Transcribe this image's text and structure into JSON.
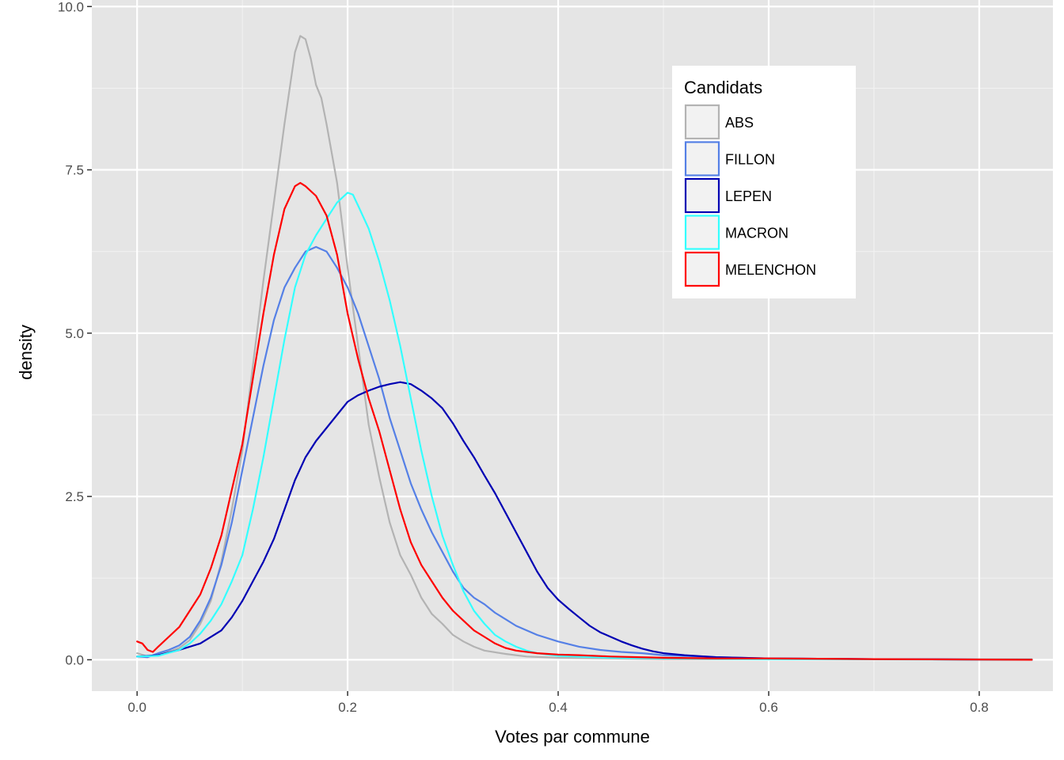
{
  "chart_data": {
    "type": "line",
    "subtype": "density",
    "xlabel": "Votes par commune",
    "ylabel": "density",
    "xlim": [
      -0.043,
      0.87
    ],
    "ylim": [
      -0.48,
      10.1
    ],
    "x_ticks": [
      0.0,
      0.2,
      0.4,
      0.6,
      0.8
    ],
    "x_tick_labels": [
      "0.0",
      "0.2",
      "0.4",
      "0.6",
      "0.8"
    ],
    "y_ticks": [
      0.0,
      2.5,
      5.0,
      7.5,
      10.0
    ],
    "y_tick_labels": [
      "0.0",
      "2.5",
      "5.0",
      "7.5",
      "10.0"
    ],
    "grid": true,
    "background": "#e5e5e5",
    "legend": {
      "title": "Candidats",
      "position": "top-right"
    },
    "series": [
      {
        "name": "ABS",
        "color": "#b3b3b3",
        "points": [
          [
            0.0,
            0.1
          ],
          [
            0.01,
            0.05
          ],
          [
            0.02,
            0.08
          ],
          [
            0.03,
            0.12
          ],
          [
            0.04,
            0.18
          ],
          [
            0.05,
            0.3
          ],
          [
            0.06,
            0.55
          ],
          [
            0.07,
            0.9
          ],
          [
            0.08,
            1.5
          ],
          [
            0.09,
            2.3
          ],
          [
            0.1,
            3.2
          ],
          [
            0.11,
            4.5
          ],
          [
            0.12,
            5.8
          ],
          [
            0.13,
            7.0
          ],
          [
            0.14,
            8.2
          ],
          [
            0.15,
            9.3
          ],
          [
            0.155,
            9.55
          ],
          [
            0.16,
            9.5
          ],
          [
            0.165,
            9.2
          ],
          [
            0.17,
            8.8
          ],
          [
            0.175,
            8.6
          ],
          [
            0.18,
            8.2
          ],
          [
            0.19,
            7.3
          ],
          [
            0.2,
            6.0
          ],
          [
            0.21,
            4.8
          ],
          [
            0.22,
            3.6
          ],
          [
            0.23,
            2.8
          ],
          [
            0.24,
            2.1
          ],
          [
            0.25,
            1.6
          ],
          [
            0.26,
            1.3
          ],
          [
            0.27,
            0.95
          ],
          [
            0.28,
            0.7
          ],
          [
            0.29,
            0.55
          ],
          [
            0.3,
            0.38
          ],
          [
            0.31,
            0.28
          ],
          [
            0.32,
            0.2
          ],
          [
            0.33,
            0.14
          ],
          [
            0.35,
            0.09
          ],
          [
            0.37,
            0.05
          ],
          [
            0.4,
            0.03
          ],
          [
            0.5,
            0.01
          ],
          [
            0.6,
            0.01
          ],
          [
            0.7,
            0.01
          ],
          [
            0.8,
            0.01
          ],
          [
            0.85,
            0.01
          ]
        ]
      },
      {
        "name": "FILLON",
        "color": "#5580e6",
        "points": [
          [
            0.0,
            0.05
          ],
          [
            0.01,
            0.04
          ],
          [
            0.02,
            0.1
          ],
          [
            0.03,
            0.15
          ],
          [
            0.04,
            0.22
          ],
          [
            0.05,
            0.35
          ],
          [
            0.06,
            0.6
          ],
          [
            0.07,
            0.95
          ],
          [
            0.08,
            1.45
          ],
          [
            0.09,
            2.1
          ],
          [
            0.1,
            2.9
          ],
          [
            0.11,
            3.7
          ],
          [
            0.12,
            4.5
          ],
          [
            0.13,
            5.2
          ],
          [
            0.14,
            5.7
          ],
          [
            0.15,
            6.0
          ],
          [
            0.16,
            6.25
          ],
          [
            0.17,
            6.32
          ],
          [
            0.18,
            6.25
          ],
          [
            0.19,
            6.0
          ],
          [
            0.2,
            5.7
          ],
          [
            0.21,
            5.3
          ],
          [
            0.22,
            4.8
          ],
          [
            0.23,
            4.3
          ],
          [
            0.24,
            3.7
          ],
          [
            0.25,
            3.2
          ],
          [
            0.26,
            2.7
          ],
          [
            0.27,
            2.3
          ],
          [
            0.28,
            1.95
          ],
          [
            0.29,
            1.65
          ],
          [
            0.3,
            1.35
          ],
          [
            0.31,
            1.1
          ],
          [
            0.32,
            0.95
          ],
          [
            0.33,
            0.85
          ],
          [
            0.34,
            0.72
          ],
          [
            0.35,
            0.62
          ],
          [
            0.36,
            0.52
          ],
          [
            0.37,
            0.45
          ],
          [
            0.38,
            0.38
          ],
          [
            0.4,
            0.28
          ],
          [
            0.42,
            0.2
          ],
          [
            0.44,
            0.15
          ],
          [
            0.46,
            0.12
          ],
          [
            0.48,
            0.1
          ],
          [
            0.5,
            0.07
          ],
          [
            0.55,
            0.04
          ],
          [
            0.6,
            0.02
          ],
          [
            0.7,
            0.01
          ],
          [
            0.85,
            0.0
          ]
        ]
      },
      {
        "name": "LEPEN",
        "color": "#0000b3",
        "points": [
          [
            0.0,
            0.05
          ],
          [
            0.02,
            0.07
          ],
          [
            0.04,
            0.15
          ],
          [
            0.06,
            0.25
          ],
          [
            0.08,
            0.45
          ],
          [
            0.09,
            0.65
          ],
          [
            0.1,
            0.9
          ],
          [
            0.11,
            1.2
          ],
          [
            0.12,
            1.5
          ],
          [
            0.13,
            1.85
          ],
          [
            0.14,
            2.3
          ],
          [
            0.15,
            2.75
          ],
          [
            0.16,
            3.1
          ],
          [
            0.17,
            3.35
          ],
          [
            0.18,
            3.55
          ],
          [
            0.19,
            3.75
          ],
          [
            0.2,
            3.95
          ],
          [
            0.21,
            4.05
          ],
          [
            0.22,
            4.12
          ],
          [
            0.23,
            4.18
          ],
          [
            0.24,
            4.22
          ],
          [
            0.25,
            4.25
          ],
          [
            0.26,
            4.22
          ],
          [
            0.27,
            4.12
          ],
          [
            0.28,
            4.0
          ],
          [
            0.29,
            3.85
          ],
          [
            0.3,
            3.62
          ],
          [
            0.31,
            3.35
          ],
          [
            0.32,
            3.1
          ],
          [
            0.33,
            2.82
          ],
          [
            0.34,
            2.55
          ],
          [
            0.35,
            2.25
          ],
          [
            0.36,
            1.95
          ],
          [
            0.37,
            1.65
          ],
          [
            0.38,
            1.35
          ],
          [
            0.39,
            1.1
          ],
          [
            0.4,
            0.92
          ],
          [
            0.41,
            0.78
          ],
          [
            0.42,
            0.65
          ],
          [
            0.43,
            0.52
          ],
          [
            0.44,
            0.42
          ],
          [
            0.45,
            0.35
          ],
          [
            0.46,
            0.28
          ],
          [
            0.47,
            0.22
          ],
          [
            0.48,
            0.17
          ],
          [
            0.49,
            0.13
          ],
          [
            0.5,
            0.1
          ],
          [
            0.52,
            0.07
          ],
          [
            0.55,
            0.04
          ],
          [
            0.6,
            0.02
          ],
          [
            0.7,
            0.01
          ],
          [
            0.85,
            0.0
          ]
        ]
      },
      {
        "name": "MACRON",
        "color": "#33ffff",
        "points": [
          [
            0.0,
            0.05
          ],
          [
            0.02,
            0.06
          ],
          [
            0.04,
            0.15
          ],
          [
            0.05,
            0.25
          ],
          [
            0.06,
            0.4
          ],
          [
            0.07,
            0.6
          ],
          [
            0.08,
            0.85
          ],
          [
            0.09,
            1.2
          ],
          [
            0.1,
            1.6
          ],
          [
            0.11,
            2.3
          ],
          [
            0.12,
            3.1
          ],
          [
            0.13,
            4.0
          ],
          [
            0.14,
            4.9
          ],
          [
            0.15,
            5.7
          ],
          [
            0.16,
            6.2
          ],
          [
            0.17,
            6.5
          ],
          [
            0.18,
            6.75
          ],
          [
            0.19,
            7.0
          ],
          [
            0.2,
            7.15
          ],
          [
            0.205,
            7.12
          ],
          [
            0.21,
            6.95
          ],
          [
            0.22,
            6.6
          ],
          [
            0.23,
            6.1
          ],
          [
            0.24,
            5.5
          ],
          [
            0.25,
            4.8
          ],
          [
            0.26,
            4.0
          ],
          [
            0.27,
            3.2
          ],
          [
            0.28,
            2.5
          ],
          [
            0.29,
            1.9
          ],
          [
            0.3,
            1.45
          ],
          [
            0.31,
            1.05
          ],
          [
            0.32,
            0.75
          ],
          [
            0.33,
            0.55
          ],
          [
            0.34,
            0.38
          ],
          [
            0.35,
            0.28
          ],
          [
            0.36,
            0.2
          ],
          [
            0.37,
            0.14
          ],
          [
            0.38,
            0.1
          ],
          [
            0.4,
            0.06
          ],
          [
            0.45,
            0.03
          ],
          [
            0.5,
            0.02
          ],
          [
            0.6,
            0.01
          ],
          [
            0.85,
            0.0
          ]
        ]
      },
      {
        "name": "MELENCHON",
        "color": "#ff0000",
        "points": [
          [
            0.0,
            0.28
          ],
          [
            0.005,
            0.25
          ],
          [
            0.01,
            0.15
          ],
          [
            0.015,
            0.12
          ],
          [
            0.02,
            0.2
          ],
          [
            0.03,
            0.35
          ],
          [
            0.04,
            0.5
          ],
          [
            0.05,
            0.75
          ],
          [
            0.06,
            1.0
          ],
          [
            0.07,
            1.4
          ],
          [
            0.08,
            1.9
          ],
          [
            0.09,
            2.6
          ],
          [
            0.1,
            3.3
          ],
          [
            0.11,
            4.3
          ],
          [
            0.12,
            5.3
          ],
          [
            0.13,
            6.2
          ],
          [
            0.14,
            6.9
          ],
          [
            0.15,
            7.25
          ],
          [
            0.155,
            7.3
          ],
          [
            0.16,
            7.25
          ],
          [
            0.17,
            7.1
          ],
          [
            0.18,
            6.8
          ],
          [
            0.19,
            6.2
          ],
          [
            0.2,
            5.3
          ],
          [
            0.21,
            4.6
          ],
          [
            0.22,
            4.0
          ],
          [
            0.23,
            3.5
          ],
          [
            0.24,
            2.9
          ],
          [
            0.25,
            2.3
          ],
          [
            0.26,
            1.8
          ],
          [
            0.27,
            1.45
          ],
          [
            0.28,
            1.2
          ],
          [
            0.29,
            0.95
          ],
          [
            0.3,
            0.75
          ],
          [
            0.31,
            0.6
          ],
          [
            0.32,
            0.45
          ],
          [
            0.33,
            0.35
          ],
          [
            0.34,
            0.25
          ],
          [
            0.35,
            0.18
          ],
          [
            0.36,
            0.14
          ],
          [
            0.38,
            0.1
          ],
          [
            0.4,
            0.08
          ],
          [
            0.42,
            0.07
          ],
          [
            0.45,
            0.05
          ],
          [
            0.5,
            0.03
          ],
          [
            0.55,
            0.02
          ],
          [
            0.6,
            0.02
          ],
          [
            0.7,
            0.01
          ],
          [
            0.85,
            0.0
          ]
        ]
      }
    ]
  }
}
